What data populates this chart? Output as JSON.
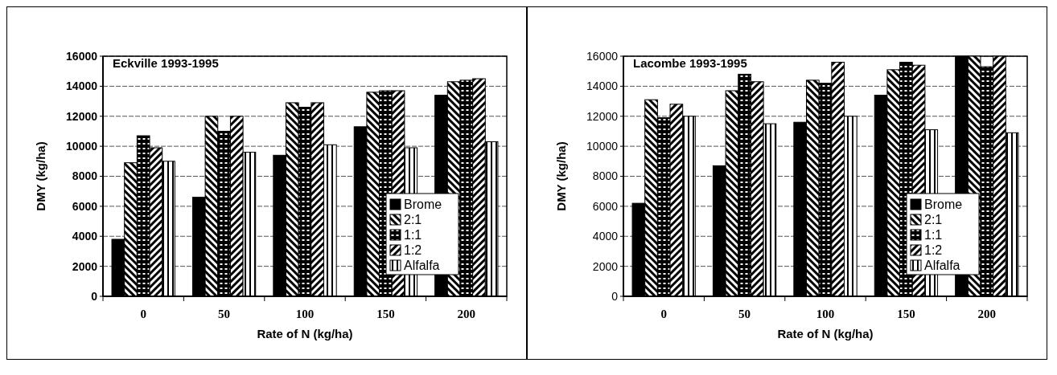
{
  "chart_data": [
    {
      "type": "bar",
      "title": "Eckville 1993-1995",
      "xlabel": "Rate of N (kg/ha)",
      "ylabel": "DMY (kg/ha)",
      "categories": [
        "0",
        "50",
        "100",
        "150",
        "200"
      ],
      "series": [
        {
          "name": "Brome",
          "color": "#000000",
          "values": [
            3800,
            6600,
            9400,
            11300,
            13400
          ]
        },
        {
          "name": "2:1",
          "color": "#000000",
          "values": [
            8900,
            12000,
            12900,
            13600,
            14300
          ]
        },
        {
          "name": "1:1",
          "color": "#000000",
          "values": [
            10700,
            11000,
            12600,
            13700,
            14400
          ]
        },
        {
          "name": "1:2",
          "color": "#000000",
          "values": [
            9900,
            12000,
            12900,
            13700,
            14500
          ]
        },
        {
          "name": "Alfalfa",
          "color": "#000000",
          "values": [
            9000,
            9600,
            10100,
            9900,
            10300
          ]
        }
      ],
      "ylim": [
        0,
        16000
      ],
      "yticks": [
        0,
        2000,
        4000,
        6000,
        8000,
        10000,
        12000,
        14000,
        16000
      ],
      "grid": "y",
      "legend": "right"
    },
    {
      "type": "bar",
      "title": "Lacombe 1993-1995",
      "xlabel": "Rate of N (kg/ha)",
      "ylabel": "DMY (kg/ha)",
      "categories": [
        "0",
        "50",
        "100",
        "150",
        "200"
      ],
      "series": [
        {
          "name": "Brome",
          "color": "#000000",
          "values": [
            6200,
            8700,
            11600,
            13400,
            16000
          ]
        },
        {
          "name": "2:1",
          "color": "#000000",
          "values": [
            13100,
            13700,
            14400,
            15100,
            16000
          ]
        },
        {
          "name": "1:1",
          "color": "#000000",
          "values": [
            11900,
            14800,
            14200,
            15600,
            15300
          ]
        },
        {
          "name": "1:2",
          "color": "#000000",
          "values": [
            12800,
            14300,
            15600,
            15400,
            16000
          ]
        },
        {
          "name": "Alfalfa",
          "color": "#000000",
          "values": [
            12000,
            11500,
            12000,
            11100,
            10900
          ]
        }
      ],
      "ylim": [
        0,
        16000
      ],
      "yticks": [
        0,
        2000,
        4000,
        6000,
        8000,
        10000,
        12000,
        14000,
        16000
      ],
      "grid": "y",
      "legend": "right"
    }
  ]
}
